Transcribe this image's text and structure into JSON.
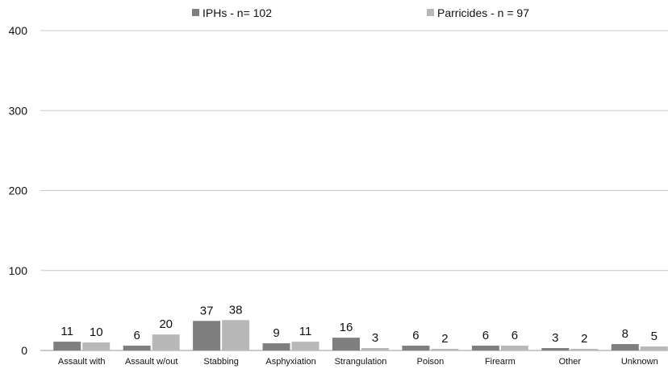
{
  "chart_data": {
    "type": "bar",
    "categories": [
      "Assault with",
      "Assault w/out",
      "Stabbing",
      "Asphyxiation",
      "Strangulation",
      "Poison",
      "Firearm",
      "Other",
      "Unknown"
    ],
    "series": [
      {
        "name": "IPHs - n= 102",
        "values": [
          11,
          6,
          37,
          9,
          16,
          6,
          6,
          3,
          8
        ],
        "color": "#7f7f7f"
      },
      {
        "name": "Parricides - n = 97",
        "values": [
          10,
          20,
          38,
          11,
          3,
          2,
          6,
          2,
          5
        ],
        "color": "#b8b8b8"
      }
    ],
    "ylim": [
      0,
      400
    ],
    "yticks": [
      0,
      100,
      200,
      300,
      400
    ],
    "grid": true,
    "legend_position": "top-center"
  }
}
